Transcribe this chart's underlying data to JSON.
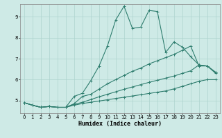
{
  "xlabel": "Humidex (Indice chaleur)",
  "background_color": "#ceeae6",
  "line_color": "#2e7d6e",
  "grid_color": "#aed4ce",
  "xlim": [
    -0.5,
    23.5
  ],
  "ylim": [
    4.4,
    9.6
  ],
  "xticks": [
    0,
    1,
    2,
    3,
    4,
    5,
    6,
    7,
    8,
    9,
    10,
    11,
    12,
    13,
    14,
    15,
    16,
    17,
    18,
    19,
    20,
    21,
    22,
    23
  ],
  "yticks": [
    5,
    6,
    7,
    8,
    9
  ],
  "line1_x": [
    0,
    1,
    2,
    3,
    4,
    5,
    6,
    7,
    8,
    9,
    10,
    11,
    12,
    13,
    14,
    15,
    16,
    17,
    18,
    19,
    20,
    21,
    22,
    23
  ],
  "line1_y": [
    4.9,
    4.78,
    4.68,
    4.72,
    4.68,
    4.68,
    5.2,
    5.35,
    5.95,
    6.65,
    7.6,
    8.85,
    9.5,
    8.45,
    8.5,
    9.3,
    9.25,
    7.3,
    7.8,
    7.55,
    7.1,
    6.7,
    6.65,
    6.3
  ],
  "line2_x": [
    0,
    1,
    2,
    3,
    4,
    5,
    6,
    7,
    8,
    9,
    10,
    11,
    12,
    13,
    14,
    15,
    16,
    17,
    18,
    19,
    20,
    21,
    22,
    23
  ],
  "line2_y": [
    4.9,
    4.78,
    4.68,
    4.72,
    4.68,
    4.68,
    4.85,
    5.2,
    5.3,
    5.55,
    5.8,
    6.0,
    6.2,
    6.4,
    6.55,
    6.75,
    6.9,
    7.05,
    7.2,
    7.4,
    7.6,
    6.65,
    6.65,
    6.35
  ],
  "line3_x": [
    0,
    1,
    2,
    3,
    4,
    5,
    6,
    7,
    8,
    9,
    10,
    11,
    12,
    13,
    14,
    15,
    16,
    17,
    18,
    19,
    20,
    21,
    22,
    23
  ],
  "line3_y": [
    4.9,
    4.78,
    4.68,
    4.72,
    4.68,
    4.68,
    4.82,
    4.92,
    5.05,
    5.18,
    5.3,
    5.42,
    5.54,
    5.65,
    5.76,
    5.87,
    5.97,
    6.07,
    6.17,
    6.3,
    6.42,
    6.7,
    6.65,
    6.35
  ],
  "line4_x": [
    0,
    1,
    2,
    3,
    4,
    5,
    6,
    7,
    8,
    9,
    10,
    11,
    12,
    13,
    14,
    15,
    16,
    17,
    18,
    19,
    20,
    21,
    22,
    23
  ],
  "line4_y": [
    4.9,
    4.78,
    4.68,
    4.72,
    4.68,
    4.68,
    4.78,
    4.86,
    4.92,
    4.98,
    5.04,
    5.1,
    5.16,
    5.22,
    5.28,
    5.34,
    5.4,
    5.46,
    5.56,
    5.68,
    5.8,
    5.92,
    6.0,
    6.0
  ]
}
